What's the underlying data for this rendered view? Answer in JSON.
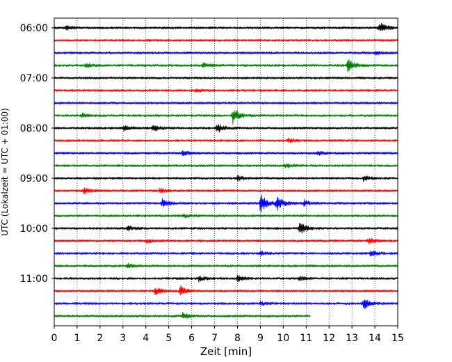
{
  "chart_data": {
    "type": "line",
    "title": "",
    "xlabel": "Zeit  [min]",
    "ylabel": "UTC (Lokalzeit = UTC + 01:00)",
    "xlim": [
      0,
      15
    ],
    "x_ticks": [
      "0",
      "1",
      "2",
      "3",
      "4",
      "5",
      "6",
      "7",
      "8",
      "9",
      "10",
      "11",
      "12",
      "13",
      "14",
      "15"
    ],
    "y_ticks": [
      "06:00",
      "07:00",
      "08:00",
      "09:00",
      "10:00",
      "11:00"
    ],
    "grid": "vertical dotted at each minute",
    "row_interval_minutes": 15,
    "colors": {
      "black": "#000000",
      "red": "#ff0000",
      "blue": "#0000ff",
      "green": "#008000"
    },
    "color_cycle": [
      "black",
      "red",
      "blue",
      "green"
    ],
    "rows": [
      {
        "start": "06:00",
        "color": "black",
        "end_minute": 15,
        "events": [
          {
            "t": 0.5,
            "amp": 0.35
          },
          {
            "t": 14.2,
            "amp": 0.9
          }
        ]
      },
      {
        "start": "06:15",
        "color": "red",
        "end_minute": 15,
        "events": []
      },
      {
        "start": "06:30",
        "color": "blue",
        "end_minute": 15,
        "events": [
          {
            "t": 14.0,
            "amp": 0.35
          }
        ]
      },
      {
        "start": "06:45",
        "color": "green",
        "end_minute": 15,
        "events": [
          {
            "t": 1.4,
            "amp": 0.3
          },
          {
            "t": 6.5,
            "amp": 0.3
          },
          {
            "t": 12.8,
            "amp": 1.0
          }
        ]
      },
      {
        "start": "07:00",
        "color": "black",
        "end_minute": 15,
        "events": []
      },
      {
        "start": "07:15",
        "color": "red",
        "end_minute": 15,
        "events": [
          {
            "t": 6.2,
            "amp": 0.3
          }
        ]
      },
      {
        "start": "07:30",
        "color": "blue",
        "end_minute": 15,
        "events": []
      },
      {
        "start": "07:45",
        "color": "green",
        "end_minute": 15,
        "events": [
          {
            "t": 1.2,
            "amp": 0.3
          },
          {
            "t": 7.8,
            "amp": 1.2
          }
        ]
      },
      {
        "start": "08:00",
        "color": "black",
        "end_minute": 15,
        "events": [
          {
            "t": 3.0,
            "amp": 0.45
          },
          {
            "t": 4.3,
            "amp": 0.55
          },
          {
            "t": 7.1,
            "amp": 0.8
          }
        ]
      },
      {
        "start": "08:15",
        "color": "red",
        "end_minute": 15,
        "events": [
          {
            "t": 10.2,
            "amp": 0.35
          }
        ]
      },
      {
        "start": "08:30",
        "color": "blue",
        "end_minute": 15,
        "events": [
          {
            "t": 5.6,
            "amp": 0.45
          },
          {
            "t": 11.5,
            "amp": 0.3
          }
        ]
      },
      {
        "start": "08:45",
        "color": "green",
        "end_minute": 15,
        "events": [
          {
            "t": 10.1,
            "amp": 0.3
          }
        ]
      },
      {
        "start": "09:00",
        "color": "black",
        "end_minute": 15,
        "events": [
          {
            "t": 8.0,
            "amp": 0.4
          },
          {
            "t": 13.5,
            "amp": 0.45
          }
        ]
      },
      {
        "start": "09:15",
        "color": "red",
        "end_minute": 15,
        "events": [
          {
            "t": 1.3,
            "amp": 0.45
          },
          {
            "t": 4.6,
            "amp": 0.35
          }
        ]
      },
      {
        "start": "09:30",
        "color": "blue",
        "end_minute": 15,
        "events": [
          {
            "t": 4.7,
            "amp": 0.65
          },
          {
            "t": 9.0,
            "amp": 1.5
          },
          {
            "t": 9.7,
            "amp": 1.2
          },
          {
            "t": 10.9,
            "amp": 0.5
          }
        ]
      },
      {
        "start": "09:45",
        "color": "green",
        "end_minute": 15,
        "events": [
          {
            "t": 5.6,
            "amp": 0.3
          }
        ]
      },
      {
        "start": "10:00",
        "color": "black",
        "end_minute": 15,
        "events": [
          {
            "t": 3.2,
            "amp": 0.45
          },
          {
            "t": 10.7,
            "amp": 1.0
          }
        ]
      },
      {
        "start": "10:15",
        "color": "red",
        "end_minute": 15,
        "events": [
          {
            "t": 4.0,
            "amp": 0.35
          },
          {
            "t": 13.7,
            "amp": 0.5
          }
        ]
      },
      {
        "start": "10:30",
        "color": "blue",
        "end_minute": 15,
        "events": [
          {
            "t": 9.0,
            "amp": 0.3
          },
          {
            "t": 13.8,
            "amp": 0.5
          }
        ]
      },
      {
        "start": "10:45",
        "color": "green",
        "end_minute": 15,
        "events": [
          {
            "t": 3.2,
            "amp": 0.35
          }
        ]
      },
      {
        "start": "11:00",
        "color": "black",
        "end_minute": 15,
        "events": [
          {
            "t": 6.3,
            "amp": 0.45
          },
          {
            "t": 8.0,
            "amp": 0.55
          },
          {
            "t": 10.7,
            "amp": 0.35
          }
        ]
      },
      {
        "start": "11:15",
        "color": "red",
        "end_minute": 15,
        "events": [
          {
            "t": 4.4,
            "amp": 0.6
          },
          {
            "t": 5.5,
            "amp": 0.8
          }
        ]
      },
      {
        "start": "11:30",
        "color": "blue",
        "end_minute": 15,
        "events": [
          {
            "t": 9.0,
            "amp": 0.3
          },
          {
            "t": 13.5,
            "amp": 0.9
          }
        ]
      },
      {
        "start": "11:45",
        "color": "green",
        "end_minute": 11.2,
        "events": [
          {
            "t": 5.6,
            "amp": 0.55
          }
        ]
      }
    ]
  }
}
